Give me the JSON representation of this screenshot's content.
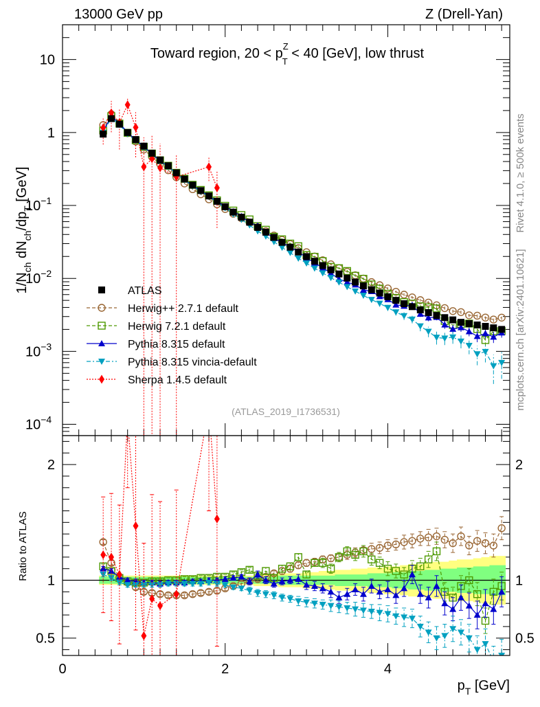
{
  "header": {
    "left": "13000 GeV pp",
    "right": "Z (Drell-Yan)"
  },
  "side": {
    "right_top": "Rivet 4.1.0, ≥ 500k events",
    "right_bottom": "mcplots.cern.ch [arXiv:2401.10621]"
  },
  "chart_data": {
    "type": "scatter",
    "title": "Toward region, 20 < p_T^Z < 40 [GeV], low thrust",
    "title_parts": {
      "a": "Toward region, 20 < p",
      "sup": "Z",
      "sub": "T",
      "b": " < 40 [GeV], low thrust"
    },
    "xlabel": "p_T [GeV]",
    "xlabel_parts": {
      "main": "p",
      "sub": "T",
      "unit": " [GeV]"
    },
    "ylabel": "1/N_ch dN_ch/dp_T [GeV]",
    "ylabel_parts": {
      "a": "1/N",
      "s1": "ch",
      "b": " dN",
      "s2": "ch",
      "c": "/dp",
      "s3": "T",
      "d": " [GeV]"
    },
    "ratio_ylabel": "Ratio to ATLAS",
    "analysis_id": "(ATLAS_2019_I1736531)",
    "xlim": [
      0,
      5.5
    ],
    "ylim": [
      7e-05,
      30
    ],
    "ratio_ylim": [
      0.35,
      2.25
    ],
    "x_ticks": [
      "0",
      "2",
      "4"
    ],
    "y_ticks": [
      {
        "value": 10,
        "label": "10"
      },
      {
        "value": 1,
        "label": "1"
      },
      {
        "value": 0.1,
        "base": "10",
        "exp": "−1"
      },
      {
        "value": 0.01,
        "base": "10",
        "exp": "−2"
      },
      {
        "value": 0.001,
        "base": "10",
        "exp": "−3"
      },
      {
        "value": 0.0001,
        "base": "10",
        "exp": "−4"
      }
    ],
    "ratio_ticks": [
      {
        "value": 0.5,
        "label": "0.5"
      },
      {
        "value": 1,
        "label": "1"
      },
      {
        "value": 2,
        "label": "2"
      }
    ],
    "x": [
      0.5,
      0.6,
      0.7,
      0.8,
      0.9,
      1.0,
      1.1,
      1.2,
      1.3,
      1.4,
      1.5,
      1.6,
      1.7,
      1.8,
      1.9,
      2.0,
      2.1,
      2.2,
      2.3,
      2.4,
      2.5,
      2.6,
      2.7,
      2.8,
      2.9,
      3.0,
      3.1,
      3.2,
      3.3,
      3.4,
      3.5,
      3.6,
      3.7,
      3.8,
      3.9,
      4.0,
      4.1,
      4.2,
      4.3,
      4.4,
      4.5,
      4.6,
      4.7,
      4.8,
      4.9,
      5.0,
      5.1,
      5.2,
      5.3,
      5.4
    ],
    "atlas": [
      0.95,
      1.55,
      1.3,
      1.0,
      0.8,
      0.65,
      0.52,
      0.42,
      0.35,
      0.28,
      0.23,
      0.19,
      0.16,
      0.135,
      0.114,
      0.096,
      0.081,
      0.069,
      0.059,
      0.05,
      0.043,
      0.0365,
      0.0312,
      0.0268,
      0.023,
      0.0199,
      0.0172,
      0.015,
      0.0131,
      0.0115,
      0.0101,
      0.0089,
      0.0079,
      0.007,
      0.0063,
      0.0056,
      0.005,
      0.0045,
      0.0041,
      0.0037,
      0.0034,
      0.0031,
      0.0029,
      0.0027,
      0.0025,
      0.0024,
      0.0023,
      0.0022,
      0.0021,
      0.002
    ],
    "atlas_band": [
      0.03,
      0.03,
      0.03,
      0.03,
      0.03,
      0.03,
      0.03,
      0.03,
      0.03,
      0.03,
      0.03,
      0.03,
      0.03,
      0.03,
      0.03,
      0.03,
      0.03,
      0.03,
      0.03,
      0.03,
      0.03,
      0.03,
      0.04,
      0.04,
      0.04,
      0.04,
      0.04,
      0.04,
      0.04,
      0.05,
      0.05,
      0.05,
      0.05,
      0.06,
      0.06,
      0.06,
      0.07,
      0.07,
      0.08,
      0.08,
      0.09,
      0.09,
      0.1,
      0.1,
      0.11,
      0.11,
      0.12,
      0.12,
      0.13,
      0.13
    ],
    "atlas_band_outer": [
      0.04,
      0.04,
      0.04,
      0.04,
      0.04,
      0.04,
      0.04,
      0.04,
      0.04,
      0.04,
      0.04,
      0.04,
      0.04,
      0.04,
      0.04,
      0.04,
      0.04,
      0.04,
      0.04,
      0.05,
      0.05,
      0.05,
      0.06,
      0.06,
      0.06,
      0.07,
      0.07,
      0.08,
      0.08,
      0.09,
      0.09,
      0.1,
      0.1,
      0.11,
      0.11,
      0.12,
      0.12,
      0.13,
      0.14,
      0.14,
      0.15,
      0.16,
      0.16,
      0.17,
      0.18,
      0.18,
      0.19,
      0.2,
      0.21,
      0.21
    ],
    "series": [
      {
        "name": "Herwig++ 2.7.1 default",
        "color": "#996633",
        "marker": "circle-open",
        "dash": "5,3",
        "ratio": [
          1.33,
          1.15,
          1.02,
          0.98,
          0.94,
          0.9,
          0.89,
          0.88,
          0.87,
          0.87,
          0.87,
          0.88,
          0.89,
          0.9,
          0.91,
          0.93,
          0.95,
          0.97,
          0.99,
          1.01,
          1.03,
          1.06,
          1.08,
          1.1,
          1.13,
          1.15,
          1.16,
          1.18,
          1.19,
          1.2,
          1.22,
          1.24,
          1.26,
          1.27,
          1.28,
          1.3,
          1.31,
          1.33,
          1.34,
          1.36,
          1.37,
          1.38,
          1.35,
          1.32,
          1.38,
          1.3,
          1.34,
          1.32,
          1.3,
          1.45
        ],
        "rerr": [
          0.02,
          0.02,
          0.02,
          0.02,
          0.02,
          0.02,
          0.02,
          0.02,
          0.02,
          0.02,
          0.02,
          0.02,
          0.02,
          0.02,
          0.02,
          0.02,
          0.02,
          0.02,
          0.02,
          0.02,
          0.02,
          0.02,
          0.03,
          0.03,
          0.03,
          0.03,
          0.03,
          0.03,
          0.03,
          0.04,
          0.04,
          0.04,
          0.04,
          0.05,
          0.05,
          0.05,
          0.05,
          0.06,
          0.06,
          0.06,
          0.07,
          0.07,
          0.07,
          0.08,
          0.08,
          0.08,
          0.09,
          0.09,
          0.1,
          0.1
        ]
      },
      {
        "name": "Herwig 7.2.1 default",
        "color": "#4d9900",
        "marker": "square-open",
        "dash": "5,3",
        "ratio": [
          1.12,
          1.08,
          1.02,
          0.99,
          0.98,
          0.98,
          0.99,
          0.99,
          1.0,
          1.0,
          1.01,
          1.01,
          1.02,
          1.02,
          1.03,
          1.03,
          1.05,
          1.07,
          1.09,
          1.04,
          1.08,
          1.02,
          1.1,
          1.12,
          1.2,
          1.05,
          1.15,
          1.15,
          1.1,
          1.2,
          1.25,
          1.22,
          1.25,
          1.18,
          1.15,
          1.1,
          1.08,
          1.05,
          1.1,
          1.12,
          1.18,
          1.25,
          0.9,
          0.85,
          0.95,
          1.0,
          0.88,
          0.65,
          0.9,
          0.95
        ],
        "rerr": [
          0.02,
          0.02,
          0.02,
          0.02,
          0.02,
          0.02,
          0.02,
          0.02,
          0.02,
          0.02,
          0.02,
          0.02,
          0.02,
          0.02,
          0.02,
          0.02,
          0.02,
          0.02,
          0.02,
          0.02,
          0.03,
          0.03,
          0.03,
          0.03,
          0.03,
          0.03,
          0.03,
          0.04,
          0.04,
          0.04,
          0.04,
          0.05,
          0.05,
          0.05,
          0.05,
          0.06,
          0.06,
          0.06,
          0.07,
          0.07,
          0.07,
          0.08,
          0.08,
          0.09,
          0.09,
          0.1,
          0.1,
          0.11,
          0.11,
          0.12
        ]
      },
      {
        "name": "Pythia 8.315 default",
        "color": "#0000cc",
        "marker": "triangle-up",
        "dash": "",
        "ratio": [
          1.1,
          1.08,
          1.03,
          1.0,
          0.99,
          0.98,
          0.98,
          0.97,
          0.98,
          0.98,
          0.98,
          0.99,
          0.99,
          1.0,
          1.0,
          1.01,
          1.02,
          1.03,
          0.99,
          1.05,
          1.0,
          0.97,
          0.99,
          1.0,
          1.01,
          0.96,
          0.95,
          0.93,
          0.9,
          0.85,
          0.88,
          0.92,
          0.88,
          0.95,
          0.9,
          0.92,
          0.87,
          0.93,
          1.05,
          0.88,
          0.85,
          0.95,
          0.8,
          0.75,
          0.85,
          0.78,
          0.7,
          0.8,
          0.75,
          0.9
        ],
        "rerr": [
          0.02,
          0.02,
          0.02,
          0.02,
          0.02,
          0.02,
          0.02,
          0.02,
          0.02,
          0.02,
          0.02,
          0.02,
          0.02,
          0.02,
          0.02,
          0.02,
          0.02,
          0.02,
          0.03,
          0.03,
          0.03,
          0.03,
          0.03,
          0.03,
          0.04,
          0.04,
          0.04,
          0.04,
          0.05,
          0.05,
          0.05,
          0.05,
          0.06,
          0.06,
          0.06,
          0.07,
          0.07,
          0.07,
          0.08,
          0.08,
          0.09,
          0.09,
          0.1,
          0.1,
          0.11,
          0.11,
          0.12,
          0.12,
          0.13,
          0.13
        ]
      },
      {
        "name": "Pythia 8.315 vincia-default",
        "color": "#00a0c0",
        "marker": "triangle-down",
        "dash": "6,3,2,3",
        "ratio": [
          1.05,
          1.02,
          0.98,
          0.96,
          0.96,
          0.96,
          0.96,
          0.96,
          0.97,
          0.97,
          0.97,
          0.97,
          0.97,
          0.98,
          0.97,
          0.96,
          0.94,
          0.93,
          0.91,
          0.89,
          0.88,
          0.87,
          0.85,
          0.84,
          0.82,
          0.81,
          0.8,
          0.79,
          0.78,
          0.77,
          0.76,
          0.75,
          0.74,
          0.73,
          0.72,
          0.71,
          0.69,
          0.68,
          0.67,
          0.6,
          0.55,
          0.5,
          0.52,
          0.58,
          0.55,
          0.5,
          0.4,
          0.45,
          0.3,
          0.35
        ],
        "rerr": [
          0.02,
          0.02,
          0.02,
          0.02,
          0.02,
          0.02,
          0.02,
          0.02,
          0.02,
          0.02,
          0.02,
          0.02,
          0.02,
          0.02,
          0.02,
          0.02,
          0.02,
          0.02,
          0.03,
          0.03,
          0.03,
          0.03,
          0.03,
          0.03,
          0.04,
          0.04,
          0.04,
          0.04,
          0.05,
          0.05,
          0.05,
          0.06,
          0.06,
          0.06,
          0.07,
          0.07,
          0.07,
          0.08,
          0.08,
          0.09,
          0.09,
          0.1,
          0.1,
          0.11,
          0.11,
          0.12,
          0.12,
          0.13,
          0.13,
          0.14
        ]
      },
      {
        "name": "Sherpa 1.4.5 default",
        "color": "#ff0000",
        "marker": "diamond",
        "dash": "2,2",
        "x": [
          0.5,
          0.6,
          0.7,
          0.8,
          0.9,
          1.0,
          1.1,
          1.2,
          1.4,
          1.8,
          1.9
        ],
        "ratio": [
          1.22,
          1.2,
          1.05,
          2.4,
          1.47,
          0.52,
          0.84,
          0.78,
          0.88,
          2.5,
          1.53
        ],
        "rerr": [
          0.5,
          0.55,
          0.6,
          0.6,
          0.9,
          0.8,
          0.9,
          0.9,
          0.9,
          0.9,
          1.1
        ]
      }
    ]
  }
}
